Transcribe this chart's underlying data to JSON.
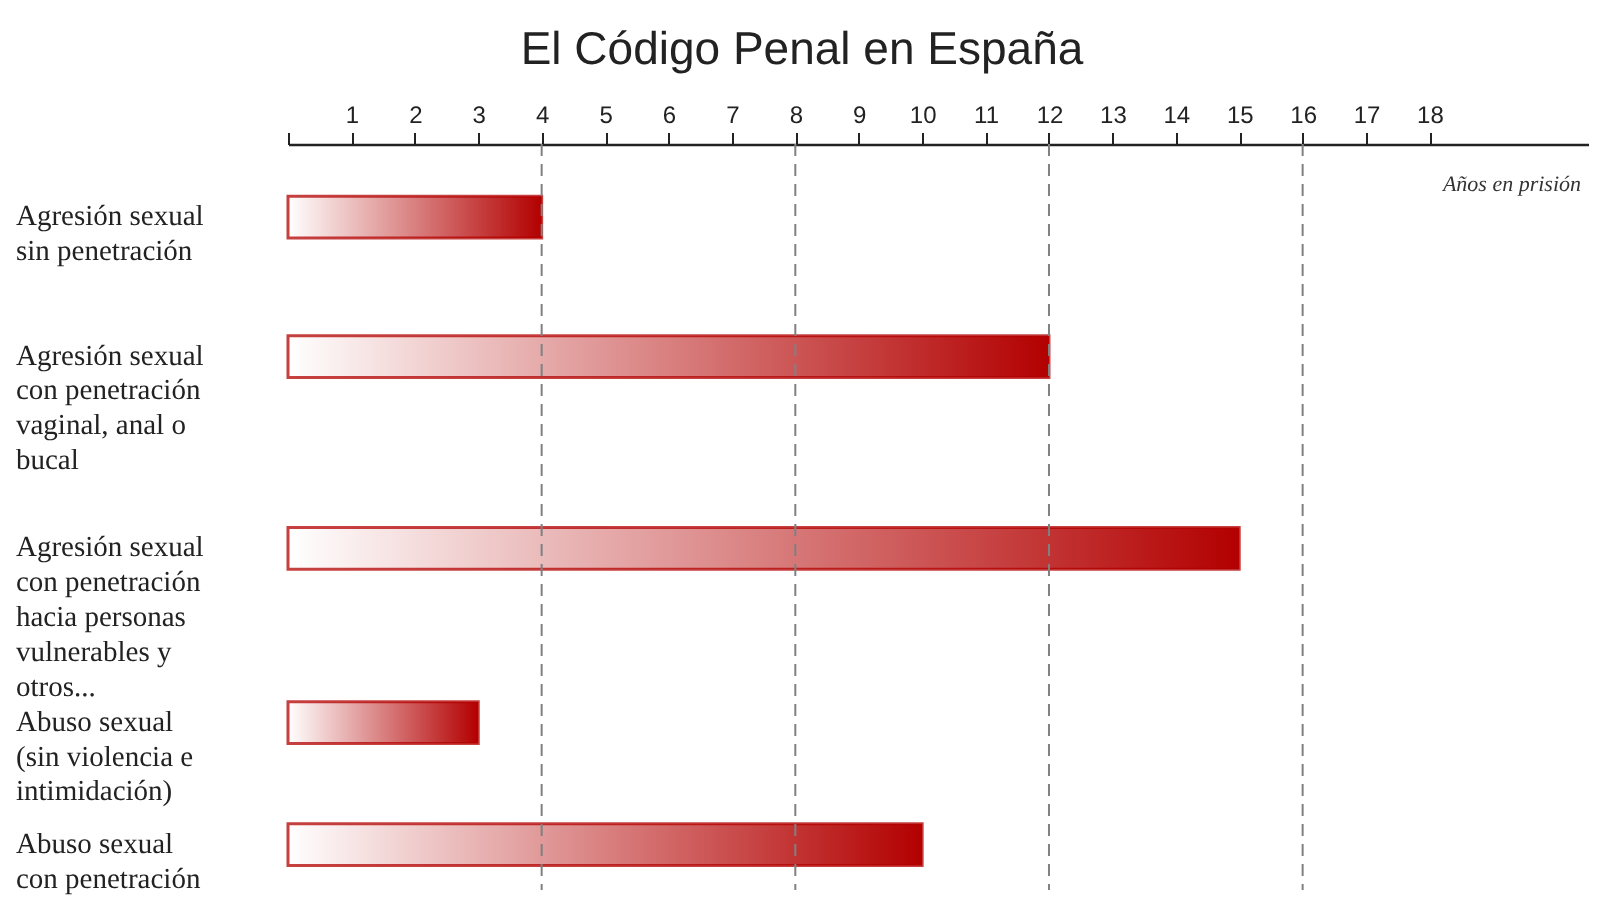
{
  "chart_data": {
    "type": "bar",
    "orientation": "horizontal",
    "title": "El Código Penal en España",
    "xlabel": "Años en prisión",
    "categories": [
      "Agresión sexual\nsin penetración",
      "Agresión sexual\ncon penetración\nvaginal, anal o\nbucal",
      "Agresión sexual\ncon penetración\nhacia personas\nvulnerables y\notros...",
      "Abuso sexual\n(sin violencia e\nintimidación)",
      "Abuso sexual\ncon penetración"
    ],
    "values": [
      4,
      12,
      15,
      3,
      10
    ],
    "color": "#b30000",
    "xlim": [
      0,
      20.5
    ],
    "xticks": [
      {
        "value": 0,
        "label": null
      },
      1,
      2,
      3,
      4,
      5,
      6,
      7,
      8,
      9,
      10,
      11,
      12,
      13,
      14,
      15,
      16,
      17,
      18
    ],
    "ref_lines": [
      {
        "axis": "x",
        "value": 4,
        "color": "#808080",
        "line_style": "dashed"
      },
      {
        "axis": "x",
        "value": 8,
        "color": "#808080",
        "line_style": "dashed"
      },
      {
        "axis": "x",
        "value": 12,
        "color": "#808080",
        "line_style": "dashed"
      },
      {
        "axis": "x",
        "value": 16,
        "color": "#808080",
        "line_style": "dashed"
      }
    ],
    "grid": false
  }
}
